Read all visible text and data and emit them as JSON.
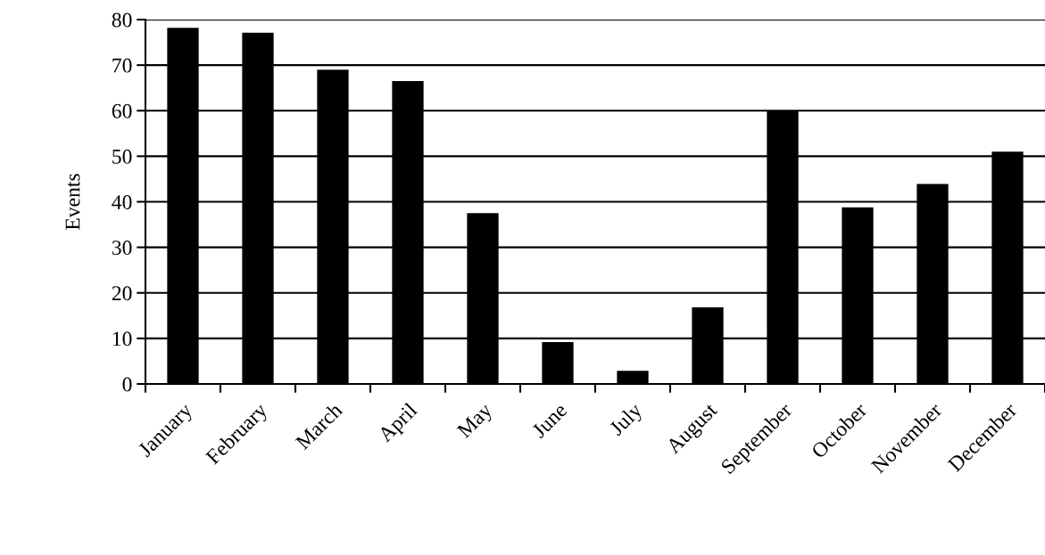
{
  "chart_data": {
    "type": "bar",
    "ylabel": "Events",
    "categories": [
      "January",
      "February",
      "March",
      "April",
      "May",
      "June",
      "July",
      "August",
      "September",
      "October",
      "November",
      "December"
    ],
    "values": [
      78.2,
      77.1,
      69,
      66.5,
      37.5,
      9.2,
      2.9,
      16.8,
      60,
      38.8,
      43.9,
      51
    ],
    "color": "#000000",
    "ylim": [
      0,
      80
    ],
    "yticks": [
      0,
      10,
      20,
      30,
      40,
      50,
      60,
      70,
      80
    ],
    "grid": "y"
  }
}
